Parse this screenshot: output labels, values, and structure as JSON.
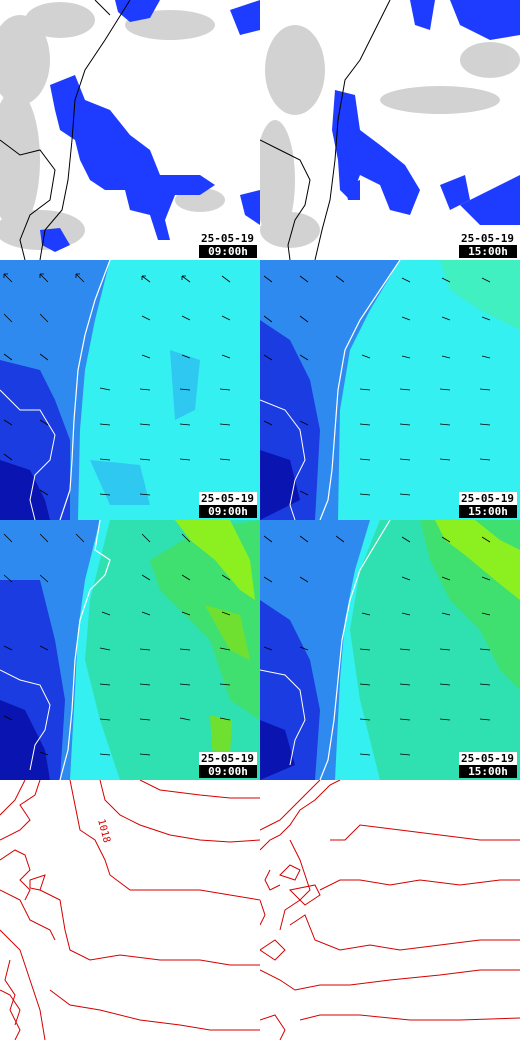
{
  "panels": {
    "p1": {
      "date": "25-05-19",
      "time": "09:00h"
    },
    "p2": {
      "date": "25-05-19",
      "time": "15:00h"
    },
    "p3": {
      "date": "25-05-19",
      "time": "09:00h"
    },
    "p4": {
      "date": "25-05-19",
      "time": "15:00h"
    },
    "p5": {
      "date": "25-05-19",
      "time": "09:00h"
    },
    "p6": {
      "date": "25-05-19",
      "time": "15:00h"
    }
  },
  "pressure": {
    "isobar_label": "1018"
  },
  "colors": {
    "precip": "#1e3cff",
    "precip_core": "#0a22e0",
    "cloud": "#c8c8c8",
    "coast": "#ffffff",
    "border": "#000000",
    "isobar": "#d40000",
    "wind_low": "#1a3ce0",
    "wind_mid": "#2f8af0",
    "wind_high": "#35f0f0",
    "gust_peak": "#8cf020"
  }
}
